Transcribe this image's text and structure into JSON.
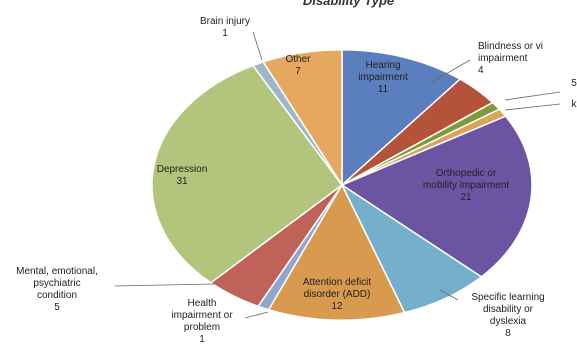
{
  "chart_data": {
    "type": "pie",
    "title": "Disability Type",
    "slices": [
      {
        "label": "Hearing impairment",
        "value": 11,
        "color": "#5b7fbe"
      },
      {
        "label": "Blindness or vision impairment",
        "value": 4,
        "color": "#b5533a"
      },
      {
        "label": "",
        "value": 1,
        "color": "#7e9a3b"
      },
      {
        "label": "",
        "value": 1,
        "color": "#d9a35a"
      },
      {
        "label": "Orthopedic or mobility impairment",
        "value": 21,
        "color": "#6b55a3"
      },
      {
        "label": "Specific learning disability or dyslexia",
        "value": 8,
        "color": "#74b0cc"
      },
      {
        "label": "Attention deficit disorder (ADD)",
        "value": 12,
        "color": "#d89a4e"
      },
      {
        "label": "Health impairment or problem",
        "value": 1,
        "color": "#8fa7cf"
      },
      {
        "label": "Mental, emotional, psychiatric condition",
        "value": 5,
        "color": "#c0625a"
      },
      {
        "label": "Depression",
        "value": 31,
        "color": "#b3c47c"
      },
      {
        "label": "Brain injury",
        "value": 1,
        "color": "#9fb7c9"
      },
      {
        "label": "Other",
        "value": 7,
        "color": "#e6a85e"
      }
    ],
    "labels_text": {
      "hearing": "Hearing\nimpairment\n11",
      "blindness": "Blindness or vi\nimpairment\n4",
      "small_5": "5",
      "small_k": "k",
      "orthopedic": "Orthopedic or\nmobility impairment\n21",
      "learning": "Specific learning\ndisability or\ndyslexia\n8",
      "add": "Attention deficit\ndisorder (ADD)\n12",
      "health": "Health\nimpairment or\nproblem\n1",
      "mental": "Mental, emotional,\npsychiatric\ncondition\n5",
      "depression": "Depression\n31",
      "brain": "Brain injury\n1",
      "other": "Other\n7"
    }
  }
}
